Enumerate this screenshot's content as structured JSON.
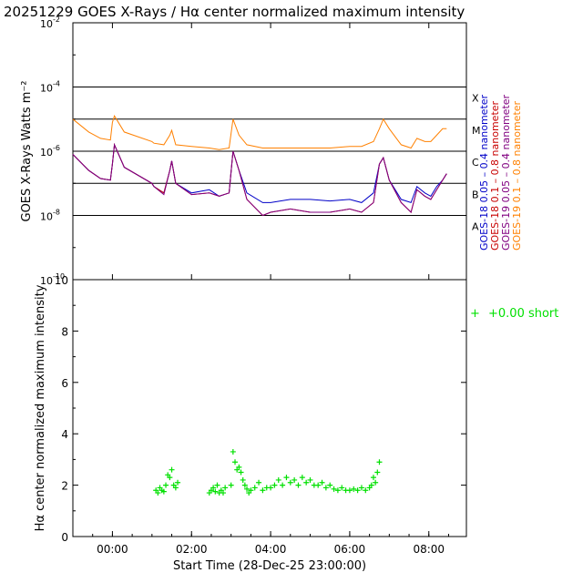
{
  "title": "20251229 GOES X-Rays / Hα center normalized maximum intensity",
  "chart_data": [
    {
      "type": "line",
      "ylabel": "GOES X-Rays Watts m⁻²",
      "yscale": "log",
      "ylim_exp": [
        -10,
        -2
      ],
      "y_ticks": [
        {
          "exp": -10,
          "label": "10",
          "sup": "-10"
        },
        {
          "exp": -8,
          "label": "10",
          "sup": "-8"
        },
        {
          "exp": -6,
          "label": "10",
          "sup": "-6"
        },
        {
          "exp": -4,
          "label": "10",
          "sup": "-4"
        },
        {
          "exp": -2,
          "label": "10",
          "sup": "-2"
        }
      ],
      "flare_thresholds": [
        {
          "label": "X",
          "exp": -4
        },
        {
          "label": "M",
          "exp": -5
        },
        {
          "label": "C",
          "exp": -6
        },
        {
          "label": "B",
          "exp": -7
        },
        {
          "label": "A",
          "exp": -8
        }
      ],
      "x_hours": [
        -1,
        -0.6,
        -0.3,
        -0.05,
        0,
        0.05,
        0.3,
        1.0,
        1.05,
        1.3,
        1.45,
        1.5,
        1.6,
        2.0,
        2.45,
        2.7,
        2.95,
        3.05,
        3.2,
        3.4,
        3.8,
        4.0,
        4.5,
        5.0,
        5.5,
        6.0,
        6.3,
        6.6,
        6.75,
        6.85,
        7.0,
        7.3,
        7.55,
        7.7,
        7.9,
        8.05,
        8.2,
        8.35,
        8.45
      ],
      "series": [
        {
          "name": "GOES-18 0.05 – 0.4 nanometer",
          "color": "#0000c8",
          "log_values": [
            -6.1,
            -6.6,
            -6.85,
            -6.9,
            -6.4,
            -5.8,
            -6.5,
            -7.0,
            -7.1,
            -7.3,
            -6.6,
            -6.3,
            -7.0,
            -7.3,
            -7.2,
            -7.4,
            -7.3,
            -6.0,
            -6.6,
            -7.3,
            -7.6,
            -7.6,
            -7.5,
            -7.5,
            -7.55,
            -7.5,
            -7.6,
            -7.3,
            -6.4,
            -6.2,
            -6.9,
            -7.5,
            -7.6,
            -7.1,
            -7.3,
            -7.4,
            -7.1,
            -6.9,
            -6.7
          ]
        },
        {
          "name": "GOES-18 0.1 – 0.8 nanometer",
          "color": "#c80000",
          "log_values": [
            -6.1,
            -6.6,
            -6.85,
            -6.9,
            -6.4,
            -5.8,
            -6.5,
            -7.0,
            -7.1,
            -7.3,
            -6.6,
            -6.3,
            -7.0,
            -7.35,
            -7.3,
            -7.4,
            -7.3,
            -6.0,
            -6.6,
            -7.5,
            -8.0,
            -7.9,
            -7.8,
            -7.9,
            -7.9,
            -7.8,
            -7.9,
            -7.6,
            -6.4,
            -6.2,
            -6.9,
            -7.6,
            -7.9,
            -7.2,
            -7.4,
            -7.5,
            -7.2,
            -6.9,
            -6.7
          ]
        },
        {
          "name": "GOES-19 0.05 – 0.4 nanometer",
          "color": "#800080",
          "log_values": [
            -6.1,
            -6.6,
            -6.85,
            -6.9,
            -6.4,
            -5.8,
            -6.5,
            -7.0,
            -7.1,
            -7.35,
            -6.6,
            -6.3,
            -7.0,
            -7.35,
            -7.3,
            -7.4,
            -7.3,
            -6.0,
            -6.6,
            -7.5,
            -8.0,
            -7.9,
            -7.8,
            -7.9,
            -7.9,
            -7.8,
            -7.9,
            -7.6,
            -6.4,
            -6.2,
            -6.9,
            -7.6,
            -7.9,
            -7.2,
            -7.4,
            -7.5,
            -7.2,
            -6.9,
            -6.7
          ]
        },
        {
          "name": "GOES-19 0.1 – 0.8 nanometer",
          "color": "#ff8000",
          "log_values": [
            -5.0,
            -5.4,
            -5.6,
            -5.65,
            -5.1,
            -4.9,
            -5.4,
            -5.7,
            -5.75,
            -5.8,
            -5.5,
            -5.35,
            -5.8,
            -5.85,
            -5.9,
            -5.95,
            -5.9,
            -5.0,
            -5.5,
            -5.8,
            -5.9,
            -5.9,
            -5.9,
            -5.9,
            -5.9,
            -5.85,
            -5.85,
            -5.7,
            -5.3,
            -5.0,
            -5.3,
            -5.8,
            -5.9,
            -5.6,
            -5.7,
            -5.7,
            -5.5,
            -5.3,
            -5.3
          ]
        }
      ]
    },
    {
      "type": "scatter",
      "ylabel": "Hα center normalized maximum intensity",
      "xlabel": "Start Time (28-Dec-25 23:00:00)",
      "x_tick_hours": [
        0,
        2,
        4,
        6,
        8
      ],
      "x_tick_labels": [
        "00:00",
        "02:00",
        "04:00",
        "06:00",
        "08:00"
      ],
      "xlim_hours": [
        -1,
        8.95
      ],
      "ylim": [
        0,
        10
      ],
      "y_ticks": [
        "0",
        "2",
        "4",
        "6",
        "8",
        "10"
      ],
      "legend": {
        "symbol": "+",
        "text": "+0.00 short",
        "color": "#00e000"
      },
      "points": [
        [
          1.1,
          1.8
        ],
        [
          1.15,
          1.7
        ],
        [
          1.2,
          1.9
        ],
        [
          1.25,
          1.8
        ],
        [
          1.3,
          1.75
        ],
        [
          1.35,
          2.0
        ],
        [
          1.4,
          2.4
        ],
        [
          1.45,
          2.3
        ],
        [
          1.5,
          2.6
        ],
        [
          1.55,
          2.0
        ],
        [
          1.6,
          1.9
        ],
        [
          1.65,
          2.1
        ],
        [
          2.45,
          1.7
        ],
        [
          2.5,
          1.8
        ],
        [
          2.55,
          1.9
        ],
        [
          2.6,
          1.75
        ],
        [
          2.65,
          2.0
        ],
        [
          2.7,
          1.7
        ],
        [
          2.75,
          1.8
        ],
        [
          2.8,
          1.7
        ],
        [
          2.85,
          1.9
        ],
        [
          3.0,
          2.0
        ],
        [
          3.05,
          3.3
        ],
        [
          3.1,
          2.9
        ],
        [
          3.15,
          2.6
        ],
        [
          3.2,
          2.7
        ],
        [
          3.25,
          2.5
        ],
        [
          3.3,
          2.2
        ],
        [
          3.35,
          2.0
        ],
        [
          3.4,
          1.85
        ],
        [
          3.45,
          1.7
        ],
        [
          3.5,
          1.8
        ],
        [
          3.6,
          1.9
        ],
        [
          3.7,
          2.1
        ],
        [
          3.8,
          1.8
        ],
        [
          3.9,
          1.9
        ],
        [
          4.0,
          1.9
        ],
        [
          4.1,
          2.0
        ],
        [
          4.2,
          2.2
        ],
        [
          4.3,
          2.0
        ],
        [
          4.4,
          2.3
        ],
        [
          4.5,
          2.1
        ],
        [
          4.6,
          2.2
        ],
        [
          4.7,
          2.0
        ],
        [
          4.8,
          2.3
        ],
        [
          4.9,
          2.1
        ],
        [
          5.0,
          2.2
        ],
        [
          5.1,
          2.0
        ],
        [
          5.2,
          2.0
        ],
        [
          5.3,
          2.1
        ],
        [
          5.4,
          1.9
        ],
        [
          5.5,
          2.0
        ],
        [
          5.6,
          1.85
        ],
        [
          5.7,
          1.8
        ],
        [
          5.8,
          1.9
        ],
        [
          5.9,
          1.8
        ],
        [
          6.0,
          1.8
        ],
        [
          6.1,
          1.85
        ],
        [
          6.2,
          1.8
        ],
        [
          6.3,
          1.9
        ],
        [
          6.4,
          1.8
        ],
        [
          6.5,
          1.9
        ],
        [
          6.55,
          2.0
        ],
        [
          6.6,
          2.3
        ],
        [
          6.65,
          2.1
        ],
        [
          6.7,
          2.5
        ],
        [
          6.75,
          2.9
        ]
      ]
    }
  ]
}
